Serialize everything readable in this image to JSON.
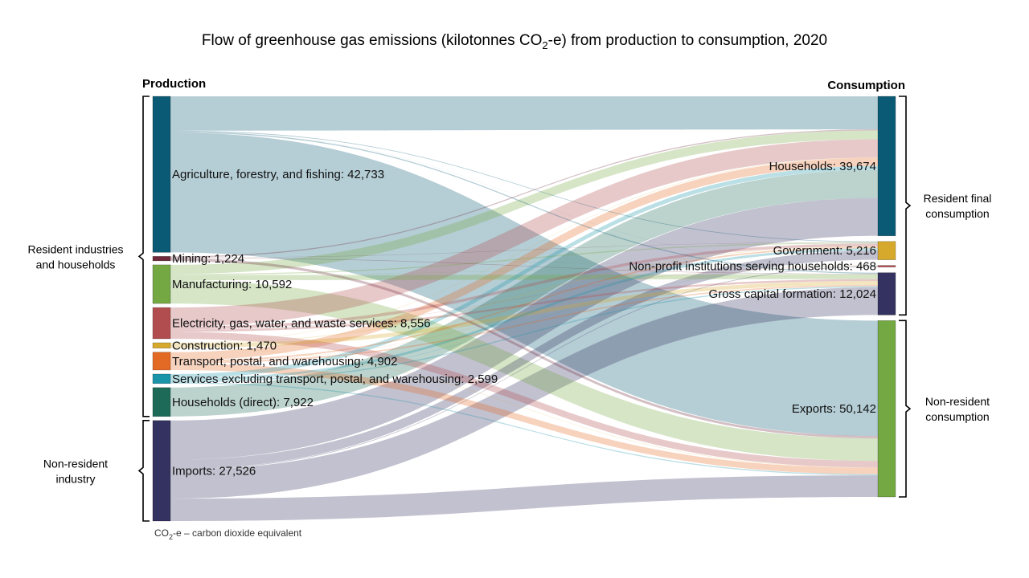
{
  "title_parts": {
    "main": "Flow of greenhouse gas emissions (kilotonnes CO",
    "sub": "2",
    "rest": "-e) from production to consumption, 2020"
  },
  "footnote_parts": {
    "main": "CO",
    "sub": "2",
    "rest": "-e – carbon dioxide equivalent"
  },
  "chart_data": {
    "type": "sankey",
    "title": "Flow of greenhouse gas emissions (kilotonnes CO2-e) from production to consumption, 2020",
    "source_header": "Production",
    "target_header": "Consumption",
    "sources": [
      {
        "name": "Agriculture, forestry, and fishing",
        "value": 42733,
        "label": "Agriculture, forestry, and fishing: 42,733",
        "color": "#0b5a75"
      },
      {
        "name": "Mining",
        "value": 1224,
        "label": "Mining: 1,224",
        "color": "#6e2a3a"
      },
      {
        "name": "Manufacturing",
        "value": 10592,
        "label": "Manufacturing: 10,592",
        "color": "#74a843"
      },
      {
        "name": "Electricity, gas, water, and waste services",
        "value": 8556,
        "label": "Electricity, gas, water, and waste services: 8,556",
        "color": "#b24d4f"
      },
      {
        "name": "Construction",
        "value": 1470,
        "label": "Construction: 1,470",
        "color": "#d6a92c"
      },
      {
        "name": "Transport, postal, and warehousing",
        "value": 4902,
        "label": "Transport, postal, and warehousing: 4,902",
        "color": "#e36a24"
      },
      {
        "name": "Services excluding transport, postal, and warehousing",
        "value": 2599,
        "label": "Services excluding transport, postal, and warehousing: 2,599",
        "color": "#1a94a8"
      },
      {
        "name": "Households (direct)",
        "value": 7922,
        "label": "Households (direct): 7,922",
        "color": "#1d6a58"
      },
      {
        "name": "Imports",
        "value": 27526,
        "label": "Imports: 27,526",
        "color": "#343260"
      }
    ],
    "targets": [
      {
        "name": "Households",
        "value": 39674,
        "label": "Households: 39,674",
        "color": "#0b5a75"
      },
      {
        "name": "Government",
        "value": 5216,
        "label": "Government: 5,216",
        "color": "#d6a92c"
      },
      {
        "name": "Non-profit institutions serving households",
        "value": 468,
        "label": "Non-profit institutions serving households: 468",
        "color": "#b24d4f"
      },
      {
        "name": "Gross capital formation",
        "value": 12024,
        "label": "Gross capital formation: 12,024",
        "color": "#343260"
      },
      {
        "name": "Exports",
        "value": 50142,
        "label": "Exports: 50,142",
        "color": "#74a843"
      }
    ],
    "flows": [
      {
        "source": "Agriculture, forestry, and fishing",
        "target": "Households",
        "value": 9400
      },
      {
        "source": "Agriculture, forestry, and fishing",
        "target": "Government",
        "value": 200
      },
      {
        "source": "Agriculture, forestry, and fishing",
        "target": "Non-profit institutions serving households",
        "value": 20
      },
      {
        "source": "Agriculture, forestry, and fishing",
        "target": "Gross capital formation",
        "value": 313
      },
      {
        "source": "Agriculture, forestry, and fishing",
        "target": "Exports",
        "value": 32800
      },
      {
        "source": "Mining",
        "target": "Households",
        "value": 300
      },
      {
        "source": "Mining",
        "target": "Government",
        "value": 80
      },
      {
        "source": "Mining",
        "target": "Non-profit institutions serving households",
        "value": 10
      },
      {
        "source": "Mining",
        "target": "Gross capital formation",
        "value": 134
      },
      {
        "source": "Mining",
        "target": "Exports",
        "value": 700
      },
      {
        "source": "Manufacturing",
        "target": "Households",
        "value": 2500
      },
      {
        "source": "Manufacturing",
        "target": "Government",
        "value": 300
      },
      {
        "source": "Manufacturing",
        "target": "Non-profit institutions serving households",
        "value": 40
      },
      {
        "source": "Manufacturing",
        "target": "Gross capital formation",
        "value": 1352
      },
      {
        "source": "Manufacturing",
        "target": "Exports",
        "value": 6400
      },
      {
        "source": "Electricity, gas, water, and waste services",
        "target": "Households",
        "value": 5200
      },
      {
        "source": "Electricity, gas, water, and waste services",
        "target": "Government",
        "value": 800
      },
      {
        "source": "Electricity, gas, water, and waste services",
        "target": "Non-profit institutions serving households",
        "value": 80
      },
      {
        "source": "Electricity, gas, water, and waste services",
        "target": "Gross capital formation",
        "value": 576
      },
      {
        "source": "Electricity, gas, water, and waste services",
        "target": "Exports",
        "value": 1900
      },
      {
        "source": "Construction",
        "target": "Households",
        "value": 100
      },
      {
        "source": "Construction",
        "target": "Government",
        "value": 150
      },
      {
        "source": "Construction",
        "target": "Non-profit institutions serving households",
        "value": 20
      },
      {
        "source": "Construction",
        "target": "Gross capital formation",
        "value": 1100
      },
      {
        "source": "Construction",
        "target": "Exports",
        "value": 100
      },
      {
        "source": "Transport, postal, and warehousing",
        "target": "Households",
        "value": 2300
      },
      {
        "source": "Transport, postal, and warehousing",
        "target": "Government",
        "value": 400
      },
      {
        "source": "Transport, postal, and warehousing",
        "target": "Non-profit institutions serving households",
        "value": 50
      },
      {
        "source": "Transport, postal, and warehousing",
        "target": "Gross capital formation",
        "value": 352
      },
      {
        "source": "Transport, postal, and warehousing",
        "target": "Exports",
        "value": 1800
      },
      {
        "source": "Services excluding transport, postal, and warehousing",
        "target": "Households",
        "value": 1200
      },
      {
        "source": "Services excluding transport, postal, and warehousing",
        "target": "Government",
        "value": 700
      },
      {
        "source": "Services excluding transport, postal, and warehousing",
        "target": "Non-profit institutions serving households",
        "value": 60
      },
      {
        "source": "Services excluding transport, postal, and warehousing",
        "target": "Gross capital formation",
        "value": 339
      },
      {
        "source": "Services excluding transport, postal, and warehousing",
        "target": "Exports",
        "value": 300
      },
      {
        "source": "Households (direct)",
        "target": "Households",
        "value": 7922
      },
      {
        "source": "Imports",
        "target": "Households",
        "value": 10752
      },
      {
        "source": "Imports",
        "target": "Government",
        "value": 2586
      },
      {
        "source": "Imports",
        "target": "Non-profit institutions serving households",
        "value": 188
      },
      {
        "source": "Imports",
        "target": "Gross capital formation",
        "value": 7858
      },
      {
        "source": "Imports",
        "target": "Exports",
        "value": 6142
      }
    ],
    "groups": [
      {
        "side": "left",
        "label": [
          "Resident industries",
          "and households"
        ],
        "members": [
          "Agriculture, forestry, and fishing",
          "Households (direct)"
        ]
      },
      {
        "side": "left",
        "label": [
          "Non-resident",
          "industry"
        ],
        "members": [
          "Imports",
          "Imports"
        ]
      },
      {
        "side": "right",
        "label": [
          "Resident final",
          "consumption"
        ],
        "members": [
          "Households",
          "Gross capital formation"
        ]
      },
      {
        "side": "right",
        "label": [
          "Non-resident",
          "consumption"
        ],
        "members": [
          "Exports",
          "Exports"
        ]
      }
    ]
  }
}
